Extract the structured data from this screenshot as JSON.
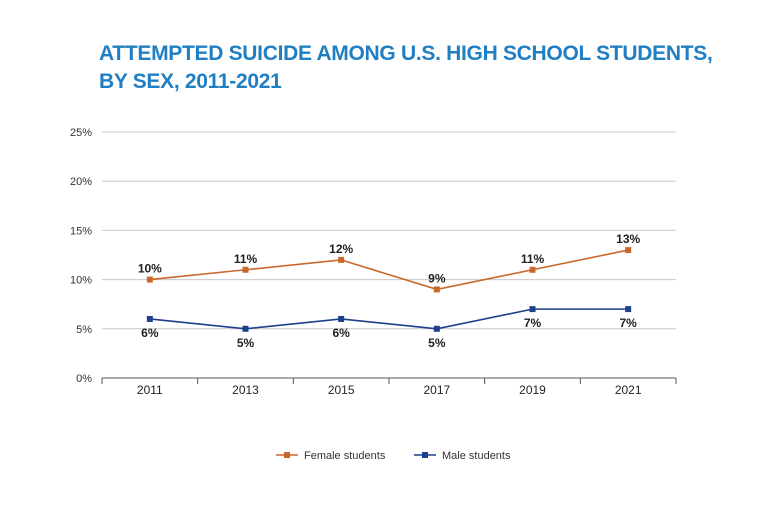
{
  "chart_data": {
    "type": "line",
    "title_line1": "ATTEMPTED SUICIDE AMONG U.S. HIGH SCHOOL STUDENTS,",
    "title_line2": "BY SEX, 2011-2021",
    "categories": [
      "2011",
      "2013",
      "2015",
      "2017",
      "2019",
      "2021"
    ],
    "y_ticks": [
      0,
      5,
      10,
      15,
      20,
      25
    ],
    "y_tick_labels": [
      "0%",
      "5%",
      "10%",
      "15%",
      "20%",
      "25%"
    ],
    "ylim": [
      0,
      25
    ],
    "grid": true,
    "legend_position": "bottom",
    "series": [
      {
        "name": "Female students",
        "values": [
          10,
          11,
          12,
          9,
          11,
          13
        ],
        "labels": [
          "10%",
          "11%",
          "12%",
          "9%",
          "11%",
          "13%"
        ],
        "label_position": "above",
        "color": "#c8682a"
      },
      {
        "name": "Male students",
        "values": [
          6,
          5,
          6,
          5,
          7,
          7
        ],
        "labels": [
          "6%",
          "5%",
          "6%",
          "5%",
          "7%",
          "7%"
        ],
        "label_position": "below",
        "color": "#1d3f8c"
      }
    ],
    "colors": {
      "title": "#1f7fc2",
      "grid": "#c8c8c8",
      "axis": "#555555"
    }
  }
}
